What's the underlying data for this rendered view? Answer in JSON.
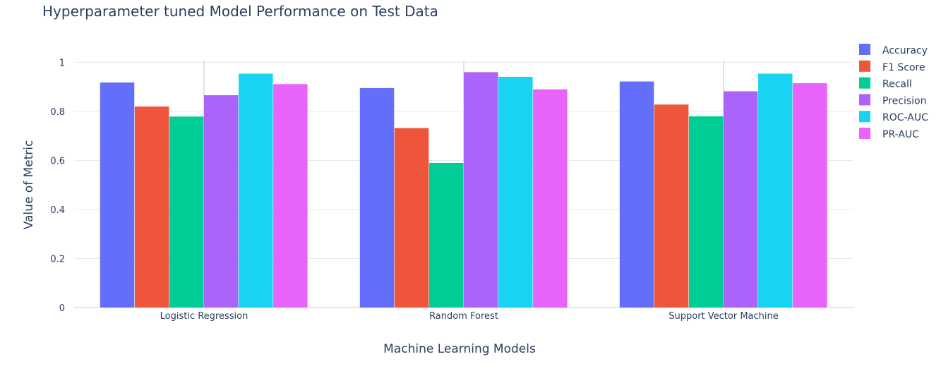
{
  "chart_data": {
    "type": "bar",
    "title": "Hyperparameter tuned Model Performance on Test Data",
    "xlabel": "Machine Learning Models",
    "ylabel": "Value of Metric",
    "ylim": [
      0,
      1.03
    ],
    "yticks": [
      0,
      0.2,
      0.4,
      0.6,
      0.8,
      1
    ],
    "ytick_labels": [
      "0",
      "0.2",
      "0.4",
      "0.6",
      "0.8",
      "1"
    ],
    "categories": [
      "Logistic Regression",
      "Random Forest",
      "Support Vector Machine"
    ],
    "grid": true,
    "legend_position": "right",
    "series": [
      {
        "name": "Accuracy",
        "color": "#636efa",
        "values": [
          0.918,
          0.895,
          0.922
        ]
      },
      {
        "name": "F1 Score",
        "color": "#ef553b",
        "values": [
          0.82,
          0.732,
          0.828
        ]
      },
      {
        "name": "Recall",
        "color": "#00cc96",
        "values": [
          0.779,
          0.59,
          0.78
        ]
      },
      {
        "name": "Precision",
        "color": "#ab63fa",
        "values": [
          0.866,
          0.96,
          0.882
        ]
      },
      {
        "name": "ROC-AUC",
        "color": "#19d3f3",
        "values": [
          0.954,
          0.941,
          0.954
        ]
      },
      {
        "name": "PR-AUC",
        "color": "#e763fa",
        "values": [
          0.911,
          0.89,
          0.915
        ]
      }
    ]
  }
}
